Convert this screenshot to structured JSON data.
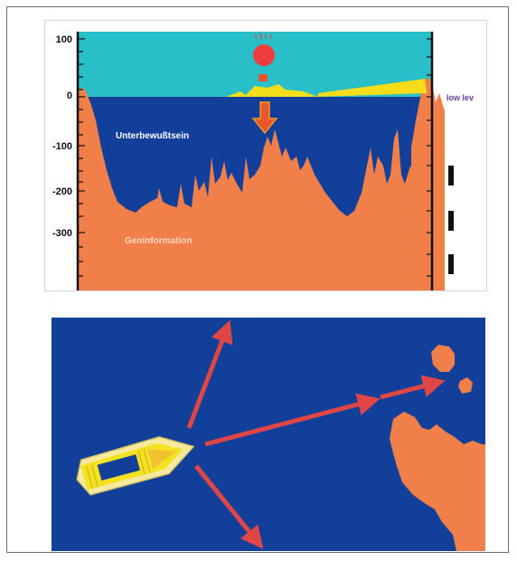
{
  "figure": {
    "y_ticks": [
      "100",
      "0",
      "-100",
      "-200",
      "-300"
    ],
    "label_subconscious": "Unterbewußtsein",
    "label_geninformation": "Geninformation",
    "label_low_level": "low  lev",
    "colors": {
      "sky": "#29bfc9",
      "sea": "#123f9a",
      "land": "#f07f4a",
      "sun": "#ef3d3d",
      "ship": "#f5dd1a",
      "arrow_fill": "#e8562a",
      "arrow_outline": "#f0a020",
      "label_white": "#ffffff",
      "label_orange": "#ffd8c0",
      "side_label": "#6a3aa0",
      "red_arrows": "#e04646",
      "boat_hull": "#f6eaa0",
      "boat_deck": "#f2e220"
    }
  },
  "bottom": {
    "arrows": [
      "arrow-up-right",
      "arrow-right",
      "arrow-down-right"
    ]
  }
}
